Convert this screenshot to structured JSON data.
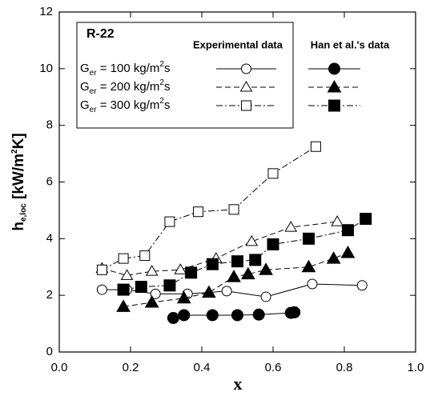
{
  "chart_data": {
    "type": "line",
    "legend_title": "R-22",
    "x_label": "x",
    "y_label": [
      "h",
      "e,loc",
      " [kW/m",
      "2",
      "K]"
    ],
    "rows": [
      [
        "G",
        "er",
        " = 100 kg/m",
        "2",
        "s"
      ],
      [
        "G",
        "er",
        " = 200 kg/m",
        "2",
        "s"
      ],
      [
        "G",
        "er",
        " = 300 kg/m",
        "2",
        "s"
      ]
    ],
    "markers": [
      "circle",
      "triangle",
      "square"
    ],
    "line_styles": [
      "solid",
      "dashed",
      "dashdot"
    ],
    "color": "#000000",
    "groups": [
      {
        "name": "Experimental data",
        "filled": false,
        "series": [
          {
            "x": [
              0.12,
              0.19,
              0.27,
              0.36,
              0.47,
              0.58,
              0.71,
              0.85
            ],
            "values": [
              2.2,
              2.2,
              2.05,
              2.05,
              2.15,
              1.95,
              2.4,
              2.35
            ]
          },
          {
            "x": [
              0.12,
              0.19,
              0.26,
              0.34,
              0.44,
              0.54,
              0.65,
              0.78
            ],
            "values": [
              2.95,
              2.7,
              2.85,
              2.9,
              3.3,
              3.9,
              4.4,
              4.6
            ]
          },
          {
            "x": [
              0.12,
              0.18,
              0.24,
              0.31,
              0.39,
              0.49,
              0.6,
              0.72
            ],
            "values": [
              2.9,
              3.3,
              3.4,
              4.6,
              4.95,
              5.03,
              6.3,
              7.25
            ]
          }
        ]
      },
      {
        "name": "Han et al.'s data",
        "filled": true,
        "series": [
          {
            "x": [
              0.32,
              0.35,
              0.43,
              0.5,
              0.56,
              0.65,
              0.66
            ],
            "values": [
              1.2,
              1.3,
              1.3,
              1.3,
              1.32,
              1.38,
              1.4
            ]
          },
          {
            "x": [
              0.18,
              0.26,
              0.35,
              0.42,
              0.49,
              0.53,
              0.58,
              0.7,
              0.77,
              0.81
            ],
            "values": [
              1.6,
              1.75,
              1.9,
              2.1,
              2.65,
              2.75,
              2.9,
              3.0,
              3.3,
              3.5
            ]
          },
          {
            "x": [
              0.18,
              0.23,
              0.31,
              0.37,
              0.43,
              0.5,
              0.55,
              0.6,
              0.7,
              0.81,
              0.86
            ],
            "values": [
              2.2,
              2.3,
              2.35,
              2.8,
              3.1,
              3.2,
              3.25,
              3.8,
              4.0,
              4.3,
              4.7
            ]
          }
        ]
      }
    ],
    "xlim": [
      0,
      1
    ],
    "xticks": [
      {
        "value": 0,
        "label": "0.0"
      },
      0.2,
      0.4,
      0.6,
      0.8,
      {
        "value": 1,
        "label": "1.0"
      }
    ],
    "ylim": [
      0,
      12
    ],
    "yticks": [
      0,
      2,
      4,
      6,
      8,
      10,
      12
    ]
  }
}
